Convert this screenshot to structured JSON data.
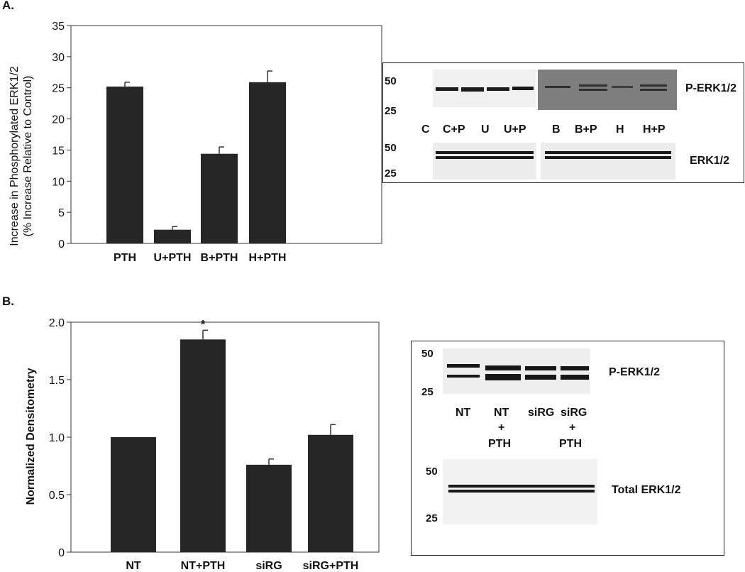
{
  "panels": {
    "a_label": "A.",
    "b_label": "B."
  },
  "chart_data": [
    {
      "type": "bar",
      "ylabel_line1": "Increase in Phosphorylated ERK1/2",
      "ylabel_line2": "(% Increase Relative to Control)",
      "categories": [
        "PTH",
        "U+PTH",
        "B+PTH",
        "H+PTH"
      ],
      "values": [
        25.2,
        2.2,
        14.4,
        25.9
      ],
      "errors": [
        0.7,
        0.5,
        1.1,
        1.8
      ],
      "ylim": [
        0,
        35
      ],
      "yticks": [
        0,
        5,
        10,
        15,
        20,
        25,
        30,
        35
      ],
      "yticklabels": [
        "0",
        "5",
        "10",
        "15",
        "20",
        "25",
        "30",
        "35"
      ],
      "bar_color": "#262626",
      "grid": false
    },
    {
      "type": "bar",
      "ylabel": "Normalized Densitometry",
      "categories": [
        "NT",
        "NT+PTH",
        "siRG",
        "siRG+PTH"
      ],
      "values": [
        1.0,
        1.85,
        0.76,
        1.02
      ],
      "errors": [
        0,
        0.08,
        0.05,
        0.09
      ],
      "significance": [
        "",
        "*",
        "",
        ""
      ],
      "ylim": [
        0,
        2.0
      ],
      "yticks": [
        0,
        0.5,
        1.0,
        1.5,
        2.0
      ],
      "yticklabels": [
        "0",
        "0.5",
        "1.0",
        "1.5",
        "2.0"
      ],
      "bar_color": "#262626",
      "grid": false
    }
  ],
  "blot_a": {
    "marker_50_top": "50",
    "marker_25_top": "25",
    "marker_50_bottom": "50",
    "marker_25_bottom": "25",
    "lanes": [
      "C",
      "C+P",
      "U",
      "U+P",
      "B",
      "B+P",
      "H",
      "H+P"
    ],
    "label_top": "P-ERK1/2",
    "label_bottom": "ERK1/2"
  },
  "blot_b": {
    "marker_50_top": "50",
    "marker_25_top": "25",
    "marker_50_bottom": "50",
    "marker_25_bottom": "25",
    "lane_1": "NT",
    "lane_2_a": "NT",
    "lane_2_b": "+",
    "lane_2_c": "PTH",
    "lane_3": "siRG",
    "lane_4_a": "siRG",
    "lane_4_b": "+",
    "lane_4_c": "PTH",
    "label_top": "P-ERK1/2",
    "label_bottom": "Total ERK1/2"
  }
}
